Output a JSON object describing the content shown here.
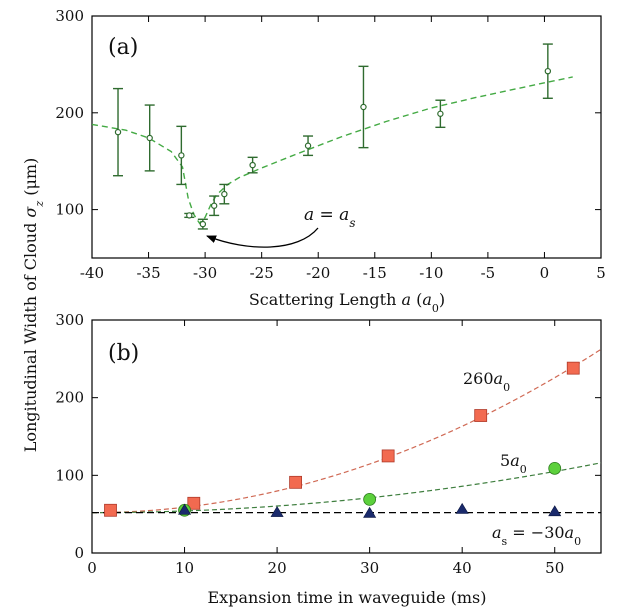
{
  "figure": {
    "ylabel": "Longitudinal Width of Cloud σz (μm)"
  },
  "chart_data": [
    {
      "type": "scatter",
      "panel_label": "(a)",
      "xlabel": "Scattering Length a (a0)",
      "xlim": [
        -40,
        5
      ],
      "ylim": [
        50,
        300
      ],
      "xticks": [
        -40,
        -35,
        -30,
        -25,
        -20,
        -15,
        -10,
        -5,
        0,
        5
      ],
      "yticks": [
        100,
        200,
        300
      ],
      "colors": {
        "points": "#2f6b2f",
        "fit": "#44aa44"
      },
      "series": [
        {
          "x": [
            -37.7,
            -34.9,
            -32.1,
            -31.4,
            -30.2,
            -29.2,
            -28.3,
            -25.8,
            -20.9,
            -16.0,
            -9.2,
            0.3
          ],
          "y": [
            180,
            174,
            156,
            94,
            85,
            104,
            116,
            146,
            166,
            206,
            199,
            243
          ],
          "yerr_low": [
            45,
            34,
            30,
            2,
            5,
            10,
            10,
            8,
            10,
            42,
            14,
            28
          ],
          "yerr_high": [
            45,
            34,
            30,
            2,
            5,
            10,
            10,
            8,
            10,
            42,
            14,
            28
          ]
        }
      ],
      "fit": {
        "x": [
          -40,
          -37,
          -35,
          -33,
          -32,
          -31.5,
          -31,
          -30.5,
          -30,
          -29.5,
          -29,
          -28,
          -27,
          -25,
          -22,
          -18,
          -14,
          -10,
          -6,
          -2,
          0,
          2.5
        ],
        "y": [
          188,
          182,
          174,
          160,
          144,
          112,
          95,
          86,
          92,
          105,
          115,
          126,
          133,
          143,
          157,
          175,
          191,
          205,
          216,
          226,
          231,
          237
        ]
      },
      "annotation": {
        "text": "a = as",
        "arrow_to": [
          -30.2,
          80
        ]
      }
    },
    {
      "type": "scatter",
      "panel_label": "(b)",
      "xlabel": "Expansion time in waveguide (ms)",
      "xlim": [
        0,
        55
      ],
      "ylim": [
        0,
        300
      ],
      "xticks": [
        0,
        10,
        20,
        30,
        40,
        50
      ],
      "yticks": [
        0,
        100,
        200,
        300
      ],
      "series": [
        {
          "name": "260a0",
          "marker": "square",
          "color": "#f26a50",
          "fit_color": "#d06a55",
          "x": [
            2,
            11,
            22,
            32,
            42,
            52
          ],
          "y": [
            55,
            64,
            91,
            125,
            177,
            238
          ]
        },
        {
          "name": "5a0",
          "marker": "circle",
          "color": "#5cd03c",
          "fit_color": "#3f7f3f",
          "x": [
            10,
            30,
            50
          ],
          "y": [
            55,
            69,
            109
          ]
        },
        {
          "name": "as = −30a0",
          "marker": "triangle",
          "color": "#1a2a6c",
          "fit_color": "#000000",
          "x": [
            10,
            20,
            30,
            40,
            50
          ],
          "y": [
            55,
            52,
            51,
            56,
            53
          ]
        }
      ],
      "fits": {
        "260a0": {
          "x0": 52,
          "k": 0.0695
        },
        "5a0": {
          "x0": 52,
          "k": 0.0212
        },
        "as = −30a0": {
          "x0": 52,
          "k": 0
        }
      }
    }
  ]
}
